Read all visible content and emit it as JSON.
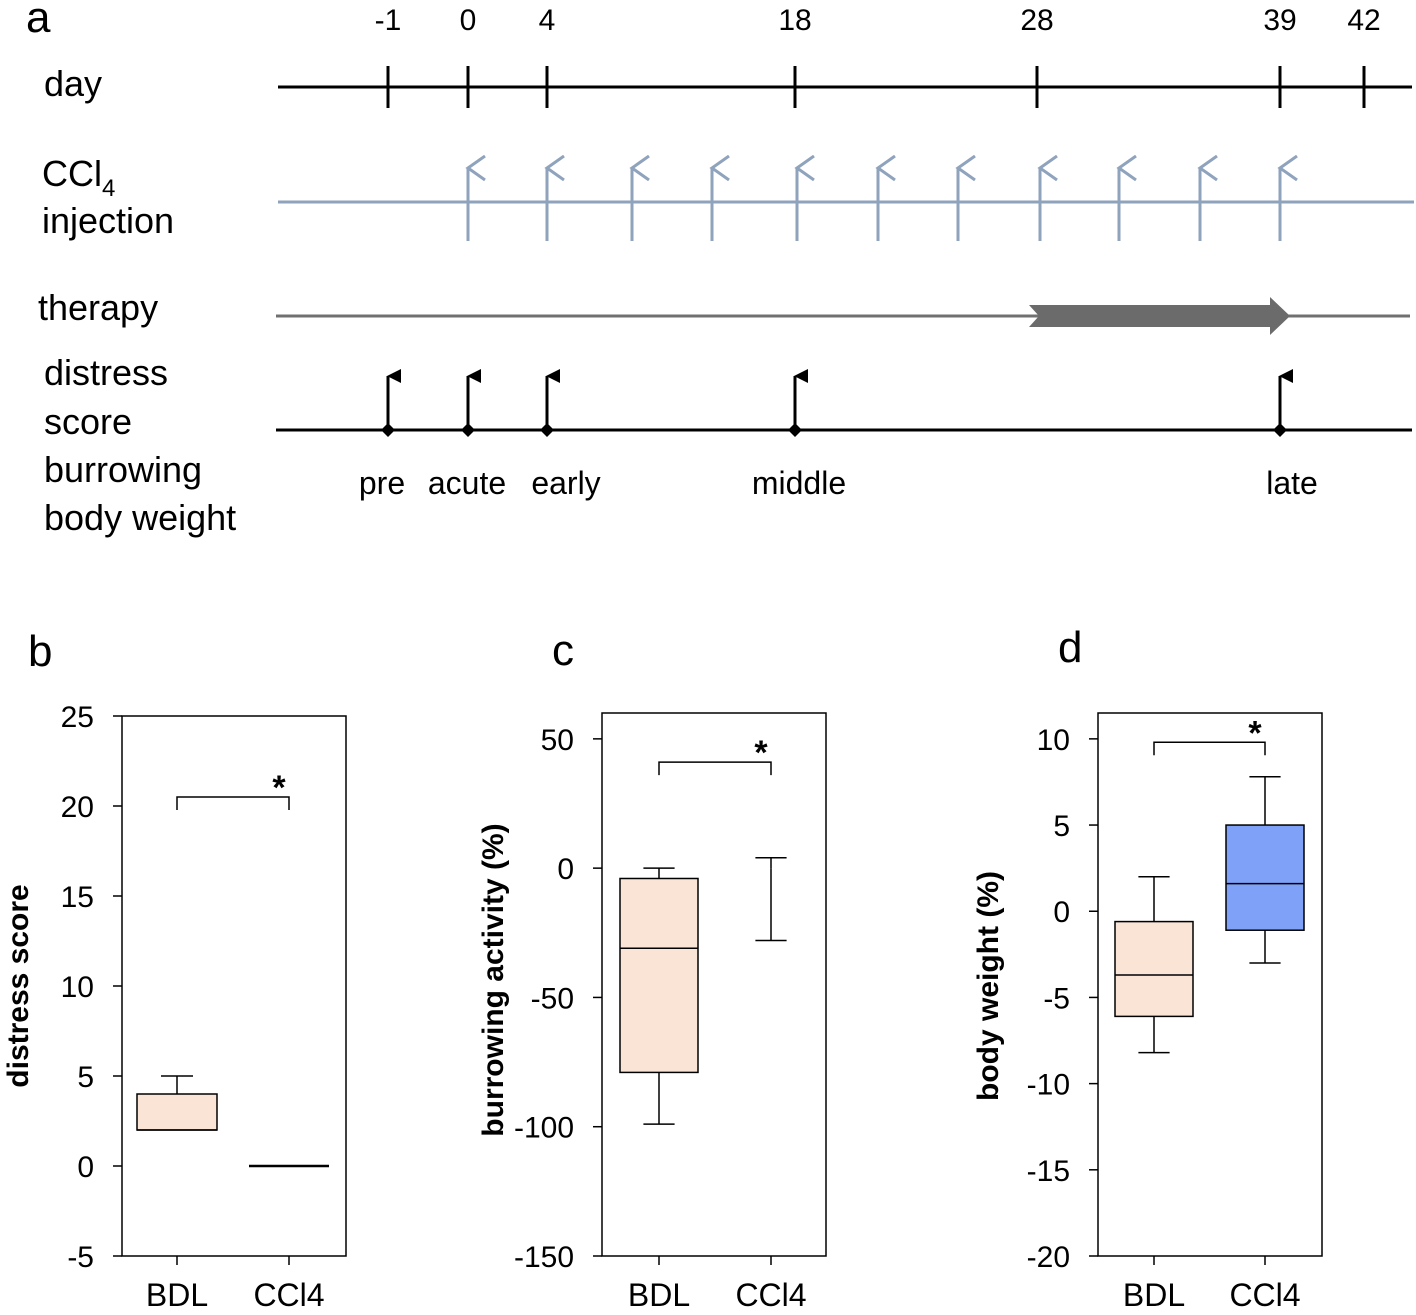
{
  "timeline": {
    "panel_label": "a",
    "day_row_label": "day",
    "days": [
      -1,
      0,
      4,
      18,
      28,
      39,
      42
    ],
    "day_labels": [
      "-1",
      "0",
      "4",
      "18",
      "28",
      "39",
      "42"
    ],
    "injection_label_main": "CCl",
    "injection_label_sub": "4",
    "injection_label_line2": "injection",
    "injection_days": [
      0,
      4,
      8,
      11,
      18,
      21,
      25,
      28,
      32,
      35,
      39
    ],
    "therapy_label": "therapy",
    "therapy_start_day": 28,
    "therapy_end_day": 39,
    "measure_label_lines": [
      "distress",
      "score",
      "burrowing",
      "body weight"
    ],
    "measure_days": [
      -1,
      0,
      4,
      18,
      39
    ],
    "measure_phase_labels": [
      "pre",
      "acute",
      "early",
      "middle",
      "late"
    ],
    "colors": {
      "axis": "#000000",
      "injection": "#8fa3bd",
      "therapy": "#707070",
      "therapy_bar": "#6b6b6b"
    }
  },
  "chart_data": [
    {
      "panel_label": "b",
      "type": "box",
      "ylabel": "distress score",
      "ylim": [
        -5,
        25
      ],
      "yticks": [
        25,
        20,
        15,
        10,
        5,
        0,
        -5
      ],
      "categories": [
        "BDL",
        "CCl4"
      ],
      "boxes": [
        {
          "name": "BDL",
          "whisker_low": 2,
          "q1": 2,
          "median": 2,
          "q3": 4,
          "whisker_high": 5,
          "color": "#f9e4d6"
        },
        {
          "name": "CCl4",
          "whisker_low": 0,
          "q1": 0,
          "median": 0,
          "q3": 0,
          "whisker_high": 0,
          "color": "#ffffff"
        }
      ],
      "significance": {
        "label": "*",
        "y": 20.5
      }
    },
    {
      "panel_label": "c",
      "type": "box",
      "ylabel": "burrowing activity (%)",
      "ylim": [
        -150,
        60
      ],
      "yticks": [
        50,
        0,
        -50,
        -100,
        -150
      ],
      "categories": [
        "BDL",
        "CCl4"
      ],
      "boxes": [
        {
          "name": "BDL",
          "whisker_low": -99,
          "q1": -79,
          "median": -31,
          "q3": -4,
          "whisker_high": 0,
          "color": "#f9e4d6"
        },
        {
          "name": "CCl4",
          "whisker_low": -28,
          "q1": 0,
          "median": 0,
          "q3": 0,
          "whisker_high": 4,
          "color": "#ffffff"
        }
      ],
      "significance": {
        "label": "*",
        "y": 41
      }
    },
    {
      "panel_label": "d",
      "type": "box",
      "ylabel": "body weight (%)",
      "ylim": [
        -20,
        11.5
      ],
      "yticks": [
        10,
        5,
        0,
        -5,
        -10,
        -15,
        -20
      ],
      "categories": [
        "BDL",
        "CCl4"
      ],
      "boxes": [
        {
          "name": "BDL",
          "whisker_low": -8.2,
          "q1": -6.1,
          "median": -3.7,
          "q3": -0.6,
          "whisker_high": 2.0,
          "color": "#f9e4d6"
        },
        {
          "name": "CCl4",
          "whisker_low": -3.0,
          "q1": -1.1,
          "median": 1.6,
          "q3": 5.0,
          "whisker_high": 7.8,
          "color": "#7fa2f8"
        }
      ],
      "significance": {
        "label": "*",
        "y": 9.8
      }
    }
  ]
}
